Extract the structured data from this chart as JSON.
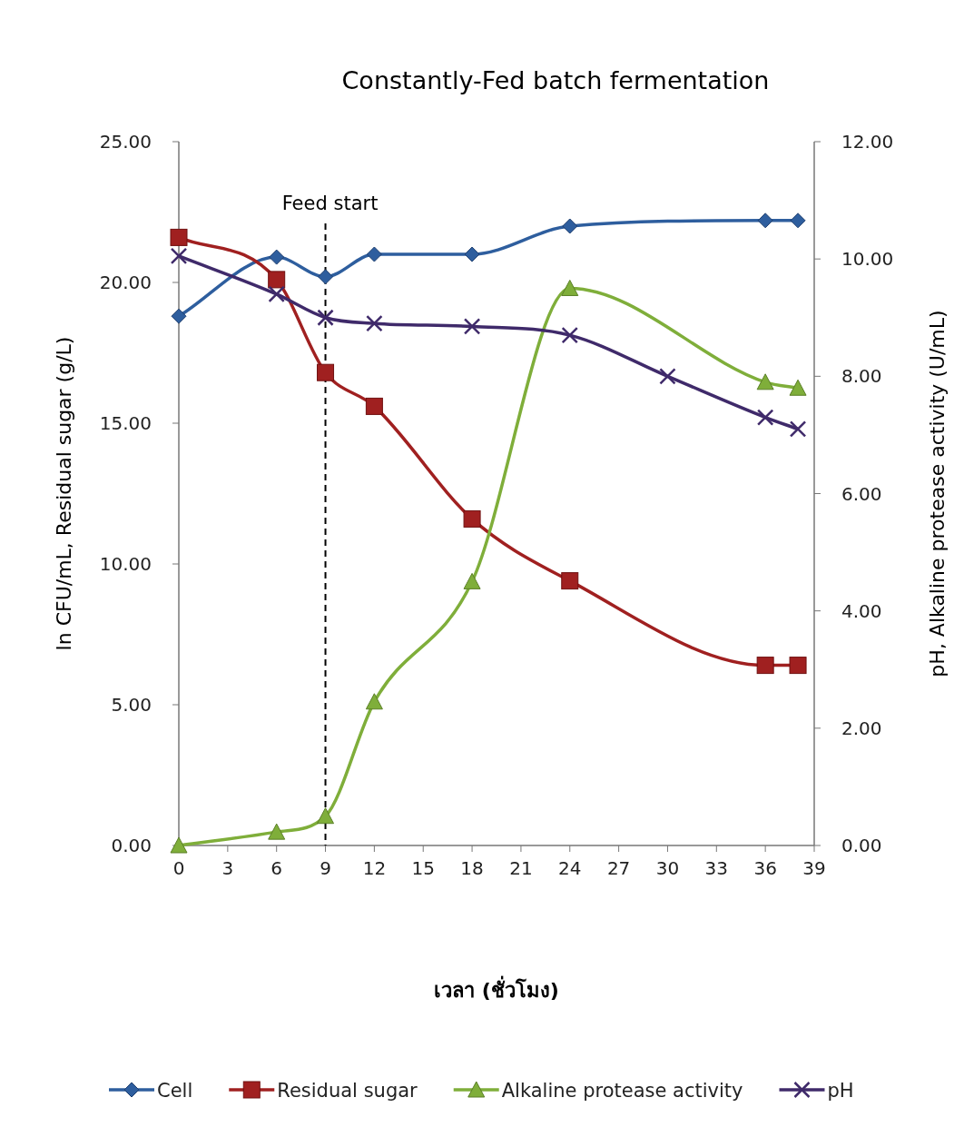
{
  "chart_data": {
    "type": "line",
    "title": "Constantly-Fed batch fermentation",
    "xlabel": "เวลา (ชั่วโมง)",
    "ylabel": "ln CFU/mL, Residual sugar (g/L)",
    "y2label": "pH, Alkaline protease activity (U/mL)",
    "xlim": [
      0,
      39
    ],
    "xticks": [
      0,
      3,
      6,
      9,
      12,
      15,
      18,
      21,
      24,
      27,
      30,
      33,
      36,
      39
    ],
    "ylim": [
      0,
      25
    ],
    "yticks": [
      {
        "value": 0,
        "label": "0.00"
      },
      {
        "value": 5,
        "label": "5.00"
      },
      {
        "value": 10,
        "label": "10.00"
      },
      {
        "value": 15,
        "label": "15.00"
      },
      {
        "value": 20,
        "label": "20.00"
      },
      {
        "value": 25,
        "label": "25.00"
      }
    ],
    "y2lim": [
      0,
      12
    ],
    "y2ticks": [
      {
        "value": 0,
        "label": "0.00"
      },
      {
        "value": 2,
        "label": "2.00"
      },
      {
        "value": 4,
        "label": "4.00"
      },
      {
        "value": 6,
        "label": "6.00"
      },
      {
        "value": 8,
        "label": "8.00"
      },
      {
        "value": 10,
        "label": "10.00"
      },
      {
        "value": 12,
        "label": "12.00"
      }
    ],
    "legend": "bottom",
    "grid": false,
    "ref_lines": [
      {
        "axis": "x",
        "value": 9,
        "label": "Feed start",
        "color": "#000000",
        "line_style": "dashed"
      }
    ],
    "series": [
      {
        "name": "Cell",
        "color": "#2e5e9e",
        "marker": "diamond",
        "x": [
          0,
          6,
          9,
          12,
          18,
          24,
          36,
          38
        ],
        "values": [
          18.8,
          20.9,
          20.2,
          21.0,
          21.0,
          22.0,
          22.2,
          22.2
        ]
      },
      {
        "name": "Residual sugar",
        "color": "#a02020",
        "marker": "square",
        "x": [
          0,
          6,
          9,
          12,
          18,
          24,
          36,
          38
        ],
        "values": [
          21.6,
          20.1,
          16.8,
          15.6,
          11.6,
          9.4,
          6.4,
          6.4
        ]
      },
      {
        "name": "Alkaline protease activity",
        "color": "#7fae3a",
        "marker": "triangle",
        "axis": "y2",
        "x": [
          0,
          6,
          9,
          12,
          18,
          24,
          36,
          38
        ],
        "values": [
          0.0,
          0.23,
          0.5,
          2.45,
          4.5,
          9.5,
          7.9,
          7.8
        ]
      },
      {
        "name": "pH",
        "color": "#3f2a6a",
        "marker": "cross",
        "axis": "y2",
        "x": [
          0,
          6,
          9,
          12,
          18,
          24,
          30,
          36,
          38
        ],
        "values": [
          10.05,
          9.4,
          9.0,
          8.9,
          8.85,
          8.7,
          8.0,
          7.3,
          7.1
        ]
      }
    ]
  }
}
